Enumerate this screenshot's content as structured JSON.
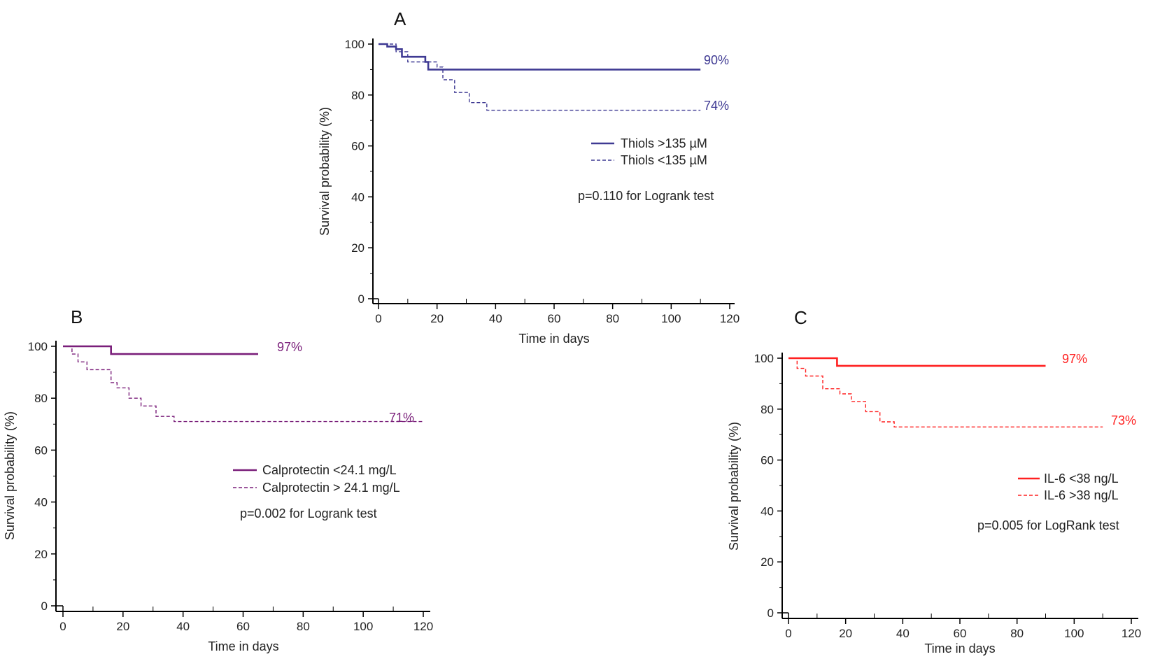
{
  "chart_data": [
    {
      "type": "line",
      "panel_label": "A",
      "xlabel": "Time in days",
      "ylabel": "Survival probability (%)",
      "xlim": [
        0,
        120
      ],
      "ylim": [
        0,
        100
      ],
      "xticks": [
        "0",
        "20",
        "40",
        "60",
        "80",
        "100",
        "120"
      ],
      "yticks": [
        "0",
        "20",
        "40",
        "60",
        "80",
        "100"
      ],
      "color": "#3f3a93",
      "legend_placement": "center-right",
      "annotation": "p=0.110 for Logrank test",
      "series": [
        {
          "name": "Thiols >135 µM",
          "style": "solid",
          "end_label": "90%",
          "x": [
            0,
            3,
            3,
            6,
            6,
            8,
            8,
            16,
            16,
            17,
            17,
            110
          ],
          "y": [
            100,
            100,
            99,
            99,
            98,
            98,
            95,
            95,
            93,
            93,
            90,
            90
          ]
        },
        {
          "name": "Thiols <135 µM",
          "style": "dashed",
          "end_label": "74%",
          "x": [
            0,
            6,
            6,
            10,
            10,
            20,
            20,
            22,
            22,
            26,
            26,
            31,
            31,
            37,
            37,
            110
          ],
          "y": [
            100,
            100,
            97,
            97,
            93,
            93,
            91,
            91,
            86,
            86,
            81,
            81,
            77,
            77,
            74,
            74
          ]
        }
      ]
    },
    {
      "type": "line",
      "panel_label": "B",
      "xlabel": "Time in days",
      "ylabel": "Survival probability (%)",
      "xlim": [
        0,
        120
      ],
      "ylim": [
        0,
        100
      ],
      "xticks": [
        "0",
        "20",
        "40",
        "60",
        "80",
        "100",
        "120"
      ],
      "yticks": [
        "0",
        "20",
        "40",
        "60",
        "80",
        "100"
      ],
      "color": "#7a1f7a",
      "legend_placement": "center-right",
      "annotation": "p=0.002 for Logrank test",
      "series": [
        {
          "name": "Calprotectin <24.1 mg/L",
          "style": "solid",
          "end_label": "97%",
          "x": [
            0,
            16,
            16,
            65
          ],
          "y": [
            100,
            100,
            97,
            97
          ]
        },
        {
          "name": "Calprotectin > 24.1 mg/L",
          "style": "dashed",
          "end_label": "71%",
          "x": [
            0,
            3,
            3,
            5,
            5,
            8,
            8,
            16,
            16,
            18,
            18,
            22,
            22,
            26,
            26,
            31,
            31,
            37,
            37,
            120
          ],
          "y": [
            100,
            100,
            97,
            97,
            94,
            94,
            91,
            91,
            86,
            86,
            84,
            84,
            80,
            80,
            77,
            77,
            73,
            73,
            71,
            71
          ]
        }
      ]
    },
    {
      "type": "line",
      "panel_label": "C",
      "xlabel": "Time in days",
      "ylabel": "Survival probability (%)",
      "xlim": [
        0,
        120
      ],
      "ylim": [
        0,
        100
      ],
      "xticks": [
        "0",
        "20",
        "40",
        "60",
        "80",
        "100",
        "120"
      ],
      "yticks": [
        "0",
        "20",
        "40",
        "60",
        "80",
        "100"
      ],
      "color": "#ff2020",
      "legend_placement": "center-right",
      "annotation": "p=0.005 for LogRank test",
      "series": [
        {
          "name": "IL-6 <38 ng/L",
          "style": "solid",
          "end_label": "97%",
          "x": [
            0,
            17,
            17,
            90
          ],
          "y": [
            100,
            100,
            97,
            97
          ]
        },
        {
          "name": "IL-6 >38 ng/L",
          "style": "dashed",
          "end_label": "73%",
          "x": [
            0,
            3,
            3,
            6,
            6,
            12,
            12,
            18,
            18,
            22,
            22,
            27,
            27,
            32,
            32,
            37,
            37,
            110
          ],
          "y": [
            100,
            100,
            96,
            96,
            93,
            93,
            88,
            88,
            86,
            86,
            83,
            83,
            79,
            79,
            75,
            75,
            73,
            73
          ]
        }
      ]
    }
  ]
}
